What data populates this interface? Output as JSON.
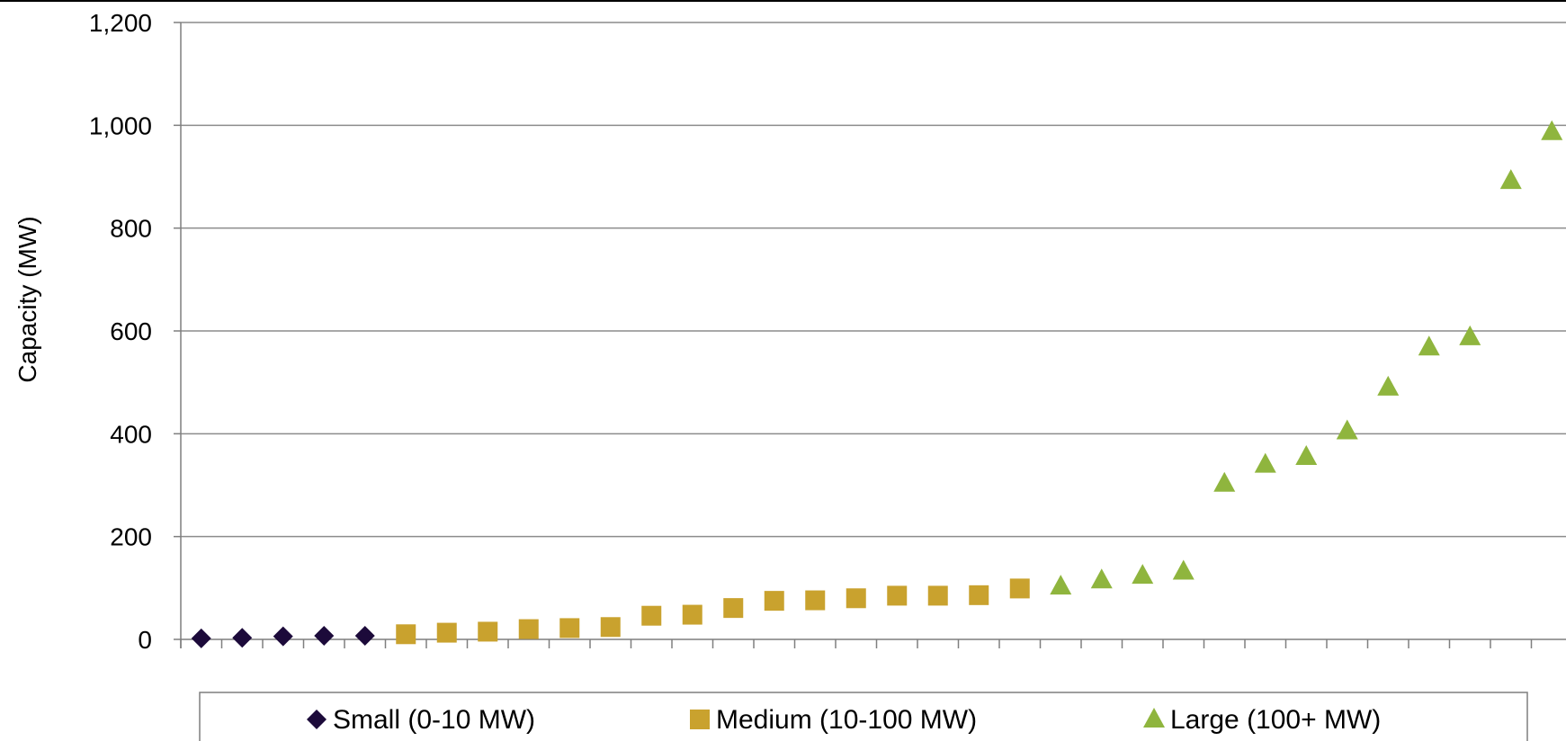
{
  "chart_data": {
    "type": "scatter",
    "title": "",
    "xlabel": "",
    "ylabel": "Capacity (MW)",
    "ylim": [
      0,
      1200
    ],
    "yticks": [
      "0",
      "200",
      "400",
      "600",
      "800",
      "1,000",
      "1,200"
    ],
    "x_count": 34,
    "grid": true,
    "legend": "bottom",
    "series": [
      {
        "name": "Small (0-10 MW)",
        "marker": "diamond",
        "color": "#1c0a3a",
        "x": [
          1,
          2,
          3,
          4,
          5
        ],
        "values": [
          2,
          3,
          6,
          7,
          7
        ]
      },
      {
        "name": "Medium (10-100 MW)",
        "marker": "square",
        "color": "#c9a22e",
        "x": [
          6,
          7,
          8,
          9,
          10,
          11,
          12,
          13,
          14,
          15,
          16,
          17,
          18,
          19,
          20,
          21
        ],
        "values": [
          10,
          13,
          15,
          20,
          22,
          24,
          46,
          48,
          61,
          75,
          76,
          80,
          85,
          85,
          86,
          99
        ]
      },
      {
        "name": "Large (100+ MW)",
        "marker": "triangle",
        "color": "#8fb53e",
        "x": [
          22,
          23,
          24,
          25,
          26,
          27,
          28,
          29,
          30,
          31,
          32,
          33,
          34
        ],
        "values": [
          103,
          115,
          124,
          132,
          303,
          340,
          355,
          405,
          490,
          568,
          588,
          892,
          987
        ]
      }
    ]
  }
}
